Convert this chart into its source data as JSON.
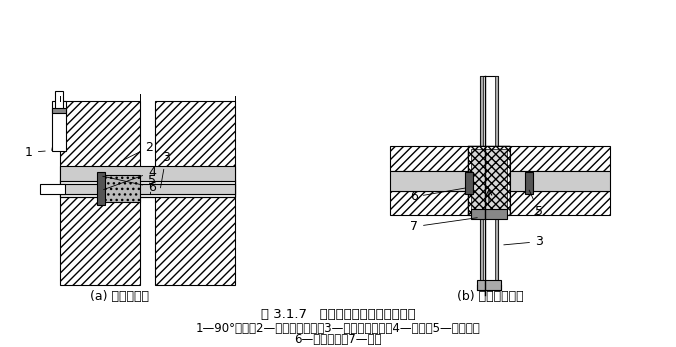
{
  "title_a": "(a) 燃气管穿墙",
  "title_b": "(b) 燃气管穿楼板",
  "fig_title": "图 3.1.7   穿墙和穿越楼板的管道安装",
  "legend_line1": "1—90°弯头；2—中性柔性填料；3—薄壁不锈钢管；4—封盖；5—钢套管；",
  "legend_line2": "6—水泥砂浆；7—封堵",
  "bg_color": "#ffffff",
  "line_color": "#000000",
  "hatch_color": "#000000",
  "label_fontsize": 9,
  "title_fontsize": 9.5,
  "legend_fontsize": 8.5
}
